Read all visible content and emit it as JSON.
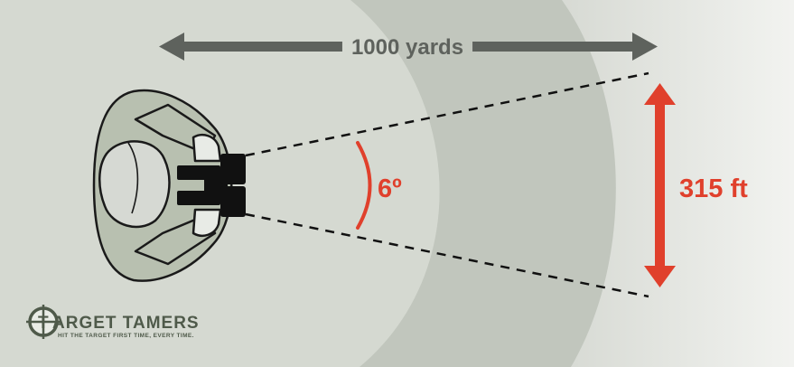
{
  "diagram": {
    "distance_label": "1000 yards",
    "angle_label": "6º",
    "width_label": "315 ft"
  },
  "logo": {
    "name_initial": "T",
    "name_rest": "ARGET TAMERS",
    "tagline": "HIT THE TARGET FIRST TIME, EVERY TIME."
  },
  "colors": {
    "accent_red": "#e0402c",
    "arrow_gray": "#5e625d",
    "person_fill": "#b8c0b0",
    "binoculars": "#111111"
  },
  "icons": {
    "person": "person-with-binoculars-icon",
    "binoculars": "binoculars-icon",
    "logo_mark": "crosshair-logo-icon"
  }
}
